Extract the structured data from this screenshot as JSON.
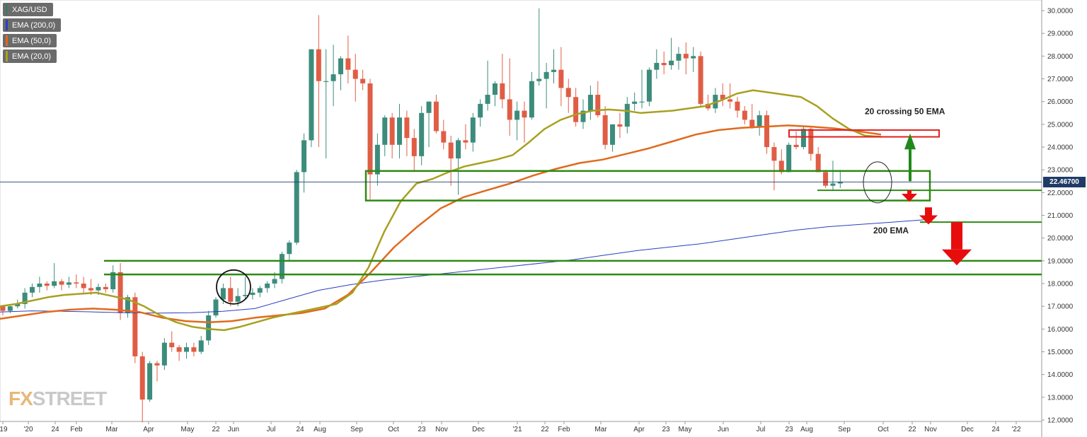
{
  "legend": [
    {
      "label": "XAG/USD",
      "color": "#3c7a6a"
    },
    {
      "label": "EMA (200,0)",
      "color": "#2b3fbf"
    },
    {
      "label": "EMA (50,0)",
      "color": "#e06a1c"
    },
    {
      "label": "EMA (20,0)",
      "color": "#a8a020"
    }
  ],
  "current_price": "22.46700",
  "watermark": {
    "part1": "FX",
    "part2": "STREET"
  },
  "chart_data": {
    "type": "candlestick",
    "symbol": "XAG/USD",
    "timeframe": "weekly",
    "ylim": [
      12.0,
      30.0
    ],
    "y_ticks": [
      "12.0000",
      "13.0000",
      "14.0000",
      "15.0000",
      "16.0000",
      "17.0000",
      "18.0000",
      "19.0000",
      "20.0000",
      "21.0000",
      "22.0000",
      "23.0000",
      "24.0000",
      "25.0000",
      "26.0000",
      "27.0000",
      "28.0000",
      "29.0000",
      "30.0000"
    ],
    "x_ticks": [
      "'19",
      "'20",
      "24",
      "Feb",
      "Mar",
      "Apr",
      "May",
      "22",
      "Jun",
      "Jul",
      "24",
      "Aug",
      "Sep",
      "Oct",
      "23",
      "Nov",
      "Dec",
      "'21",
      "22",
      "Feb",
      "Mar",
      "Apr",
      "23",
      "May",
      "Jun",
      "Jul",
      "23",
      "Aug",
      "Sep",
      "Oct",
      "22",
      "Nov",
      "Dec",
      "24",
      "'22"
    ],
    "candles": [
      [
        17.0,
        17.05,
        16.6,
        16.8
      ],
      [
        16.8,
        17.1,
        16.7,
        17.0
      ],
      [
        17.0,
        17.3,
        16.9,
        17.1
      ],
      [
        17.1,
        17.8,
        16.9,
        17.6
      ],
      [
        17.6,
        18.0,
        17.4,
        17.85
      ],
      [
        17.85,
        18.3,
        17.6,
        18.0
      ],
      [
        18.0,
        18.1,
        17.7,
        17.9
      ],
      [
        17.9,
        18.9,
        17.8,
        18.1
      ],
      [
        18.1,
        18.2,
        17.7,
        17.95
      ],
      [
        17.95,
        18.3,
        17.8,
        18.05
      ],
      [
        18.05,
        18.4,
        17.8,
        18.0
      ],
      [
        18.0,
        18.3,
        17.6,
        17.8
      ],
      [
        17.8,
        18.2,
        17.5,
        17.7
      ],
      [
        17.7,
        18.0,
        17.5,
        17.85
      ],
      [
        17.85,
        18.0,
        17.6,
        17.75
      ],
      [
        17.75,
        18.8,
        17.6,
        18.5
      ],
      [
        18.5,
        18.9,
        16.4,
        16.7
      ],
      [
        16.7,
        17.5,
        16.5,
        17.4
      ],
      [
        17.4,
        17.6,
        14.5,
        14.8
      ],
      [
        14.8,
        15.0,
        11.9,
        12.9
      ],
      [
        12.9,
        14.6,
        12.8,
        14.5
      ],
      [
        14.5,
        14.6,
        13.7,
        14.4
      ],
      [
        14.4,
        15.6,
        14.2,
        15.4
      ],
      [
        15.4,
        15.9,
        15.0,
        15.2
      ],
      [
        15.2,
        15.3,
        14.6,
        15.0
      ],
      [
        15.0,
        15.4,
        14.7,
        15.2
      ],
      [
        15.2,
        15.4,
        14.8,
        15.0
      ],
      [
        15.0,
        15.7,
        14.9,
        15.5
      ],
      [
        15.5,
        16.8,
        15.3,
        16.6
      ],
      [
        16.6,
        17.4,
        16.5,
        17.3
      ],
      [
        17.3,
        18.0,
        17.1,
        17.8
      ],
      [
        17.8,
        18.3,
        17.0,
        17.2
      ],
      [
        17.2,
        17.8,
        17.0,
        17.45
      ],
      [
        17.45,
        18.3,
        17.3,
        17.5
      ],
      [
        17.5,
        17.8,
        17.3,
        17.6
      ],
      [
        17.6,
        17.9,
        17.4,
        17.8
      ],
      [
        17.8,
        18.1,
        17.6,
        18.0
      ],
      [
        18.0,
        18.5,
        17.8,
        18.2
      ],
      [
        18.2,
        19.4,
        18.0,
        19.3
      ],
      [
        19.3,
        19.9,
        19.0,
        19.8
      ],
      [
        19.8,
        23.0,
        19.7,
        22.9
      ],
      [
        22.9,
        24.6,
        22.0,
        24.3
      ],
      [
        24.3,
        28.3,
        24.0,
        28.3
      ],
      [
        28.3,
        29.8,
        24.0,
        26.9
      ],
      [
        26.9,
        28.3,
        23.5,
        26.9
      ],
      [
        26.9,
        28.5,
        25.8,
        27.2
      ],
      [
        27.2,
        28.0,
        26.5,
        27.9
      ],
      [
        27.9,
        28.9,
        26.8,
        27.4
      ],
      [
        27.4,
        28.1,
        26.0,
        27.0
      ],
      [
        27.0,
        27.4,
        26.5,
        26.8
      ],
      [
        26.8,
        27.0,
        21.7,
        22.8
      ],
      [
        22.8,
        24.6,
        22.3,
        24.1
      ],
      [
        24.1,
        25.4,
        23.6,
        25.3
      ],
      [
        25.3,
        25.5,
        23.5,
        24.1
      ],
      [
        24.1,
        25.9,
        23.5,
        25.3
      ],
      [
        25.3,
        25.6,
        23.6,
        24.4
      ],
      [
        24.4,
        24.8,
        22.9,
        23.6
      ],
      [
        23.6,
        25.8,
        23.2,
        25.5
      ],
      [
        25.5,
        26.0,
        24.0,
        26.0
      ],
      [
        26.0,
        26.3,
        24.6,
        24.7
      ],
      [
        24.7,
        25.2,
        23.9,
        24.2
      ],
      [
        24.2,
        24.5,
        22.3,
        23.5
      ],
      [
        23.5,
        24.4,
        21.9,
        24.3
      ],
      [
        24.3,
        25.0,
        23.9,
        24.2
      ],
      [
        24.2,
        25.5,
        23.8,
        25.3
      ],
      [
        25.3,
        26.1,
        24.9,
        25.9
      ],
      [
        25.9,
        27.8,
        25.6,
        26.3
      ],
      [
        26.3,
        26.9,
        25.8,
        26.8
      ],
      [
        26.8,
        28.1,
        25.7,
        26.1
      ],
      [
        26.1,
        27.9,
        24.5,
        25.2
      ],
      [
        25.2,
        26.0,
        24.3,
        25.6
      ],
      [
        25.6,
        26.0,
        24.2,
        25.3
      ],
      [
        25.3,
        27.3,
        25.2,
        26.9
      ],
      [
        26.9,
        30.1,
        26.7,
        27.0
      ],
      [
        27.0,
        27.7,
        25.7,
        27.3
      ],
      [
        27.3,
        28.3,
        26.8,
        27.4
      ],
      [
        27.4,
        28.4,
        25.8,
        26.6
      ],
      [
        26.6,
        27.0,
        25.5,
        26.2
      ],
      [
        26.2,
        26.6,
        24.9,
        25.1
      ],
      [
        25.1,
        26.1,
        24.8,
        25.6
      ],
      [
        25.6,
        26.7,
        25.2,
        26.3
      ],
      [
        26.3,
        26.9,
        25.3,
        25.4
      ],
      [
        25.4,
        25.8,
        23.9,
        24.1
      ],
      [
        24.1,
        25.0,
        23.8,
        25.0
      ],
      [
        25.0,
        25.5,
        24.4,
        24.9
      ],
      [
        24.9,
        26.2,
        24.6,
        25.9
      ],
      [
        25.9,
        26.4,
        25.6,
        26.0
      ],
      [
        26.0,
        27.4,
        25.7,
        26.0
      ],
      [
        26.0,
        27.5,
        25.8,
        27.4
      ],
      [
        27.4,
        28.3,
        27.0,
        27.7
      ],
      [
        27.7,
        28.2,
        27.2,
        27.6
      ],
      [
        27.6,
        28.8,
        27.4,
        27.8
      ],
      [
        27.8,
        28.4,
        27.4,
        28.1
      ],
      [
        28.1,
        28.6,
        27.2,
        27.9
      ],
      [
        27.9,
        28.4,
        27.3,
        28.0
      ],
      [
        28.0,
        28.2,
        25.8,
        25.9
      ],
      [
        25.9,
        26.3,
        25.6,
        25.7
      ],
      [
        25.7,
        26.6,
        25.5,
        26.3
      ],
      [
        26.3,
        26.8,
        25.8,
        26.1
      ],
      [
        26.1,
        26.8,
        25.7,
        26.0
      ],
      [
        26.0,
        26.2,
        25.3,
        25.6
      ],
      [
        25.6,
        25.8,
        25.0,
        25.2
      ],
      [
        25.2,
        25.9,
        24.8,
        24.9
      ],
      [
        24.9,
        25.6,
        24.5,
        25.4
      ],
      [
        25.4,
        25.6,
        23.7,
        24.0
      ],
      [
        24.0,
        24.2,
        22.1,
        23.4
      ],
      [
        23.4,
        23.9,
        22.8,
        22.9
      ],
      [
        22.9,
        24.2,
        22.9,
        24.1
      ],
      [
        24.1,
        24.7,
        23.9,
        24.0
      ],
      [
        24.0,
        24.9,
        23.9,
        24.8
      ],
      [
        24.8,
        24.9,
        23.4,
        23.7
      ],
      [
        23.7,
        24.0,
        22.9,
        22.9
      ],
      [
        22.9,
        23.0,
        22.2,
        22.3
      ],
      [
        22.3,
        23.4,
        22.1,
        22.4
      ],
      [
        22.4,
        23.0,
        22.2,
        22.47
      ]
    ],
    "ema20": [
      17.0,
      17.1,
      17.25,
      17.4,
      17.5,
      17.55,
      17.6,
      17.45,
      17.3,
      17.0,
      16.6,
      16.3,
      16.1,
      16.0,
      15.95,
      16.1,
      16.3,
      16.5,
      16.65,
      16.8,
      16.95,
      17.1,
      17.6,
      18.7,
      20.3,
      21.6,
      22.4,
      22.6,
      22.9,
      23.15,
      23.3,
      23.45,
      23.65,
      24.2,
      24.8,
      25.2,
      25.45,
      25.6,
      25.65,
      25.6,
      25.5,
      25.55,
      25.6,
      25.7,
      25.8,
      26.05,
      26.35,
      26.5,
      26.4,
      26.3,
      26.2,
      25.8,
      25.25,
      24.8,
      24.5,
      24.45
    ],
    "ema50": [
      16.45,
      16.6,
      16.75,
      16.85,
      16.9,
      16.85,
      16.75,
      16.5,
      16.35,
      16.3,
      16.35,
      16.5,
      16.6,
      16.7,
      16.9,
      17.5,
      18.5,
      19.6,
      20.5,
      21.3,
      21.8,
      22.1,
      22.4,
      22.75,
      23.05,
      23.3,
      23.45,
      23.7,
      23.95,
      24.25,
      24.55,
      24.75,
      24.85,
      24.9,
      24.95,
      24.9,
      24.82,
      24.7,
      24.55
    ],
    "ema200": [
      16.75,
      16.8,
      16.78,
      16.75,
      16.72,
      16.7,
      16.72,
      16.78,
      16.9,
      17.3,
      17.7,
      17.95,
      18.15,
      18.3,
      18.45,
      18.6,
      18.75,
      18.9,
      19.05,
      19.25,
      19.45,
      19.6,
      19.75,
      19.95,
      20.15,
      20.35,
      20.5,
      20.6,
      20.7,
      20.8
    ],
    "annotations": [
      {
        "text": "20 crossing 50 EMA"
      },
      {
        "text": "200 EMA"
      }
    ]
  }
}
